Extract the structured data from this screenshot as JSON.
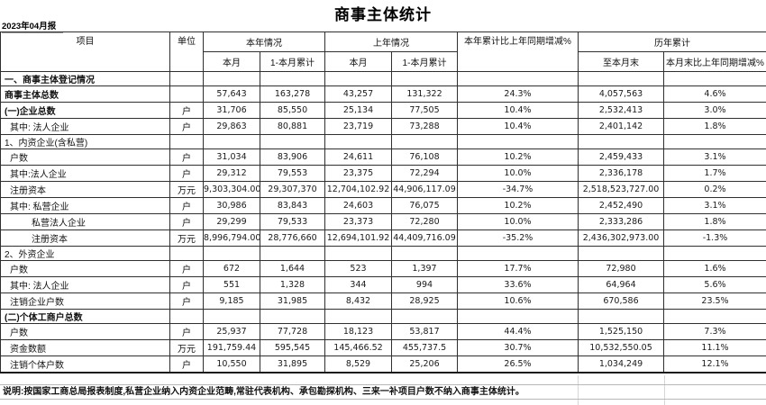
{
  "report": {
    "title": "商事主体统计",
    "period": "2023年04月报",
    "note": "说明:按国家工商总局报表制度,私营企业纳入内资企业范畴,常驻代表机构、承包勘探机构、三来一补项目户数不纳入商事主体统计。"
  },
  "table": {
    "headers": {
      "item": "项目",
      "unit": "单位",
      "current_year": "本年情况",
      "prev_year": "上年情况",
      "month": "本月",
      "month_cum": "1-本月累计",
      "yoy_change": "本年累计比上年同期增减%",
      "historical": "历年累计",
      "to_month_end": "至本月末",
      "month_end_yoy": "本月末比上年同期增减%"
    },
    "rows": [
      {
        "label": "一、商事主体登记情况",
        "bold": true,
        "section": true,
        "indent": 0,
        "unit": "",
        "values": [
          "",
          "",
          "",
          "",
          "",
          "",
          ""
        ]
      },
      {
        "label": "商事主体总数",
        "bold": true,
        "section": false,
        "indent": 0,
        "unit": "",
        "values": [
          "57,643",
          "163,278",
          "43,257",
          "131,322",
          "24.3%",
          "4,057,563",
          "4.6%"
        ]
      },
      {
        "label": "(一)企业总数",
        "bold": true,
        "section": false,
        "indent": 0,
        "unit": "户",
        "values": [
          "31,706",
          "85,550",
          "25,134",
          "77,505",
          "10.4%",
          "2,532,413",
          "3.0%"
        ]
      },
      {
        "label": "其中: 法人企业",
        "bold": false,
        "section": false,
        "indent": 1,
        "unit": "户",
        "values": [
          "29,863",
          "80,881",
          "23,719",
          "73,288",
          "10.4%",
          "2,401,142",
          "1.8%"
        ]
      },
      {
        "label": "1、内资企业(含私营)",
        "bold": false,
        "section": true,
        "indent": 0,
        "unit": "",
        "values": [
          "",
          "",
          "",
          "",
          "",
          "",
          ""
        ]
      },
      {
        "label": "户数",
        "bold": false,
        "section": false,
        "indent": 1,
        "unit": "户",
        "values": [
          "31,034",
          "83,906",
          "24,611",
          "76,108",
          "10.2%",
          "2,459,433",
          "3.1%"
        ]
      },
      {
        "label": "其中:法人企业",
        "bold": false,
        "section": false,
        "indent": 1,
        "unit": "户",
        "values": [
          "29,312",
          "79,553",
          "23,375",
          "72,294",
          "10.0%",
          "2,336,178",
          "1.7%"
        ]
      },
      {
        "label": "注册资本",
        "bold": false,
        "section": false,
        "indent": 1,
        "unit": "万元",
        "values": [
          "9,303,304.00",
          "29,307,370",
          "12,704,102.92",
          "44,906,117.09",
          "-34.7%",
          "2,518,523,727.00",
          "0.2%"
        ]
      },
      {
        "label": "其中: 私营企业",
        "bold": false,
        "section": false,
        "indent": 1,
        "unit": "户",
        "values": [
          "30,986",
          "83,843",
          "24,603",
          "76,075",
          "10.2%",
          "2,452,490",
          "3.1%"
        ]
      },
      {
        "label": "私营法人企业",
        "bold": false,
        "section": false,
        "indent": 2,
        "unit": "户",
        "values": [
          "29,299",
          "79,533",
          "23,373",
          "72,280",
          "10.0%",
          "2,333,286",
          "1.8%"
        ]
      },
      {
        "label": "注册资本",
        "bold": false,
        "section": false,
        "indent": 2,
        "unit": "万元",
        "values": [
          "8,996,794.00",
          "28,776,660",
          "12,694,101.92",
          "44,409,716.09",
          "-35.2%",
          "2,436,302,973.00",
          "-1.3%"
        ]
      },
      {
        "label": "2、外资企业",
        "bold": false,
        "section": true,
        "indent": 0,
        "unit": "",
        "values": [
          "",
          "",
          "",
          "",
          "",
          "",
          ""
        ]
      },
      {
        "label": "户数",
        "bold": false,
        "section": false,
        "indent": 1,
        "unit": "户",
        "values": [
          "672",
          "1,644",
          "523",
          "1,397",
          "17.7%",
          "72,980",
          "1.6%"
        ]
      },
      {
        "label": "其中: 法人企业",
        "bold": false,
        "section": false,
        "indent": 1,
        "unit": "户",
        "values": [
          "551",
          "1,328",
          "344",
          "994",
          "33.6%",
          "64,964",
          "5.6%"
        ]
      },
      {
        "label": "注销企业户数",
        "bold": false,
        "section": false,
        "indent": 1,
        "unit": "户",
        "values": [
          "9,185",
          "31,985",
          "8,432",
          "28,925",
          "10.6%",
          "670,586",
          "23.5%"
        ]
      },
      {
        "label": "(二)个体工商户总数",
        "bold": true,
        "section": true,
        "indent": 0,
        "unit": "",
        "values": [
          "",
          "",
          "",
          "",
          "",
          "",
          ""
        ]
      },
      {
        "label": "户数",
        "bold": false,
        "section": false,
        "indent": 1,
        "unit": "户",
        "values": [
          "25,937",
          "77,728",
          "18,123",
          "53,817",
          "44.4%",
          "1,525,150",
          "7.3%"
        ]
      },
      {
        "label": "资金数额",
        "bold": false,
        "section": false,
        "indent": 1,
        "unit": "万元",
        "values": [
          "191,759.44",
          "595,545",
          "145,466.52",
          "455,737.5",
          "30.7%",
          "10,532,550.05",
          "11.1%"
        ]
      },
      {
        "label": "注销个体户数",
        "bold": false,
        "section": false,
        "indent": 1,
        "unit": "户",
        "values": [
          "10,550",
          "31,895",
          "8,529",
          "25,206",
          "26.5%",
          "1,034,249",
          "12.1%"
        ]
      }
    ]
  }
}
